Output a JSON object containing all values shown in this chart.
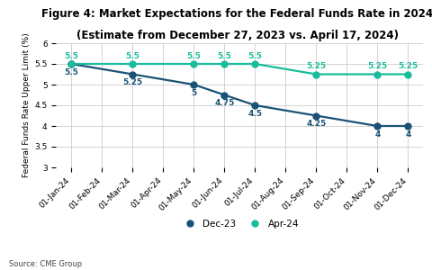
{
  "title_line1": "Figure 4: Market Expectations for the Federal Funds Rate in 2024",
  "title_line2": "(Estimate from December 27, 2023 vs. April 17, 2024)",
  "ylabel": "Federal Funds Rate Upper Limit (%)",
  "source": "Source: CME Group",
  "x_labels": [
    "01-Jan-24",
    "01-Feb-24",
    "01-Mar-24",
    "01-Apr-24",
    "01-May-24",
    "01-Jun-24",
    "01-Jul-24",
    "01-Aug-24",
    "01-Sep-24",
    "01-Oct-24",
    "01-Nov-24",
    "01-Dec-24"
  ],
  "dec23_values": [
    5.5,
    5.375,
    5.25,
    5.125,
    5.0,
    4.75,
    4.5,
    4.375,
    4.25,
    4.125,
    4.0,
    4.0
  ],
  "apr24_values": [
    5.5,
    5.5,
    5.5,
    5.5,
    5.5,
    5.5,
    5.5,
    5.375,
    5.25,
    5.25,
    5.25,
    5.25
  ],
  "dec23_point_indices": [
    0,
    2,
    4,
    5,
    6,
    8,
    10,
    11
  ],
  "apr24_point_indices": [
    0,
    2,
    4,
    5,
    6,
    8,
    10,
    11
  ],
  "dec23_labels": {
    "0": "5.5",
    "2": "5.25",
    "4": "5",
    "5": "4.75",
    "6": "4.5",
    "8": "4.25",
    "10": "4",
    "11": "4"
  },
  "apr24_labels": {
    "0": "5.5",
    "2": "5.5",
    "4": "5.5",
    "5": "5.5",
    "6": "5.5",
    "8": "5.25",
    "10": "5.25",
    "11": "5.25"
  },
  "dec23_color": "#1a5276",
  "apr24_color": "#1abc9c",
  "ylim": [
    3.0,
    6.0
  ],
  "yticks": [
    3.0,
    3.5,
    4.0,
    4.5,
    5.0,
    5.5,
    6.0
  ],
  "legend_dec23": "Dec-23",
  "legend_apr24": "Apr-24",
  "background_color": "#ffffff",
  "grid_color": "#cccccc",
  "title_fontsize": 8.5,
  "axis_label_fontsize": 6.5,
  "tick_fontsize": 6.5,
  "data_label_fontsize": 6.5,
  "legend_fontsize": 7.5,
  "source_fontsize": 6.0
}
